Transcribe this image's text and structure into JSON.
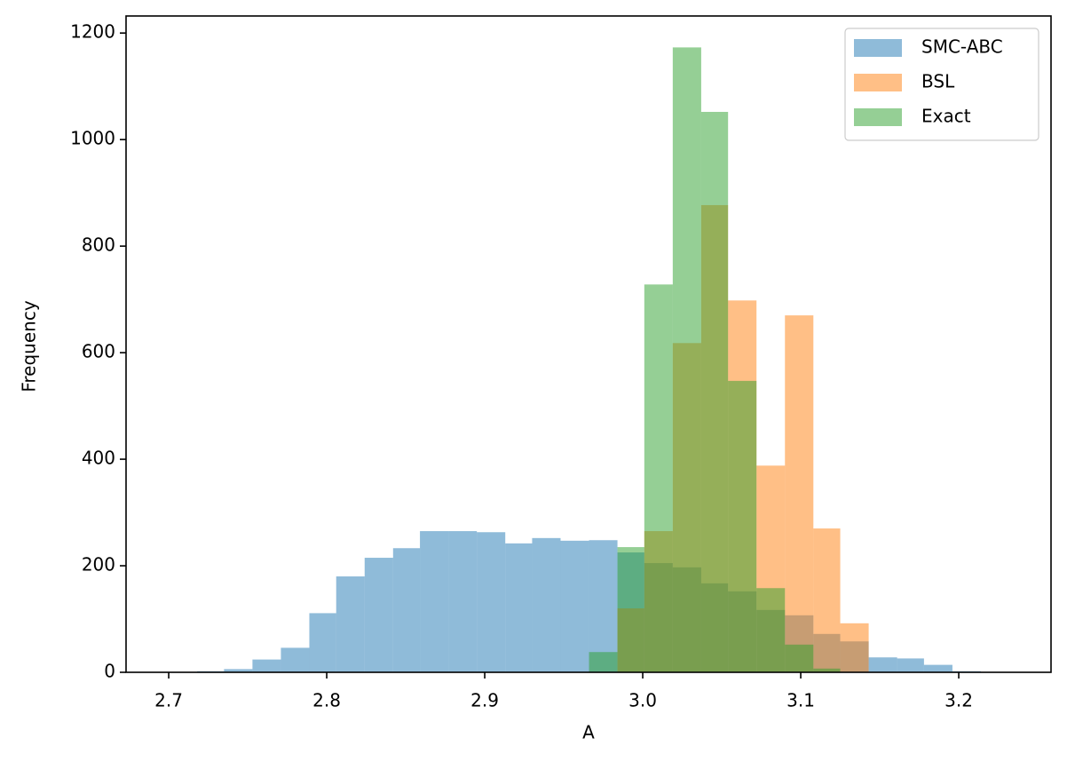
{
  "chart_data": {
    "type": "histogram",
    "xlabel": "A",
    "ylabel": "Frequency",
    "xlim": [
      2.673,
      3.2584
    ],
    "ylim": [
      0,
      1232
    ],
    "xticks": [
      2.7,
      2.8,
      2.9,
      {
        "value": 3,
        "label": "3.0"
      },
      3.1,
      3.2
    ],
    "yticks": [
      0,
      200,
      400,
      600,
      800,
      1000,
      1200
    ],
    "legend": "upper right",
    "alpha": 0.5,
    "series": [
      {
        "name": "SMC-ABC",
        "color": "#1f77b4",
        "bins": [
          2.7,
          2.718,
          2.735,
          2.753,
          2.771,
          2.789,
          2.806,
          2.824,
          2.842,
          2.859,
          2.877,
          2.895,
          2.913,
          2.93,
          2.948,
          2.966,
          2.984,
          3.001,
          3.019,
          3.037,
          3.054,
          3.072,
          3.09,
          3.108,
          3.125,
          3.143,
          3.161,
          3.178,
          3.196,
          3.214
        ],
        "values": [
          0,
          2,
          6,
          24,
          46,
          111,
          180,
          215,
          233,
          265,
          265,
          263,
          242,
          252,
          247,
          248,
          225,
          205,
          197,
          167,
          152,
          117,
          107,
          72,
          58,
          28,
          26,
          14,
          2
        ]
      },
      {
        "name": "BSL",
        "color": "#ff7f0e",
        "bins": [
          2.984,
          3.001,
          3.019,
          3.037,
          3.054,
          3.072,
          3.09,
          3.108,
          3.125,
          3.143
        ],
        "values": [
          120,
          265,
          618,
          877,
          698,
          388,
          670,
          270,
          92
        ]
      },
      {
        "name": "Exact",
        "color": "#2ca02c",
        "bins": [
          2.966,
          2.984,
          3.001,
          3.019,
          3.037,
          3.054,
          3.072,
          3.09,
          3.108,
          3.125
        ],
        "values": [
          38,
          235,
          728,
          1173,
          1052,
          547,
          158,
          52,
          7
        ]
      }
    ]
  }
}
